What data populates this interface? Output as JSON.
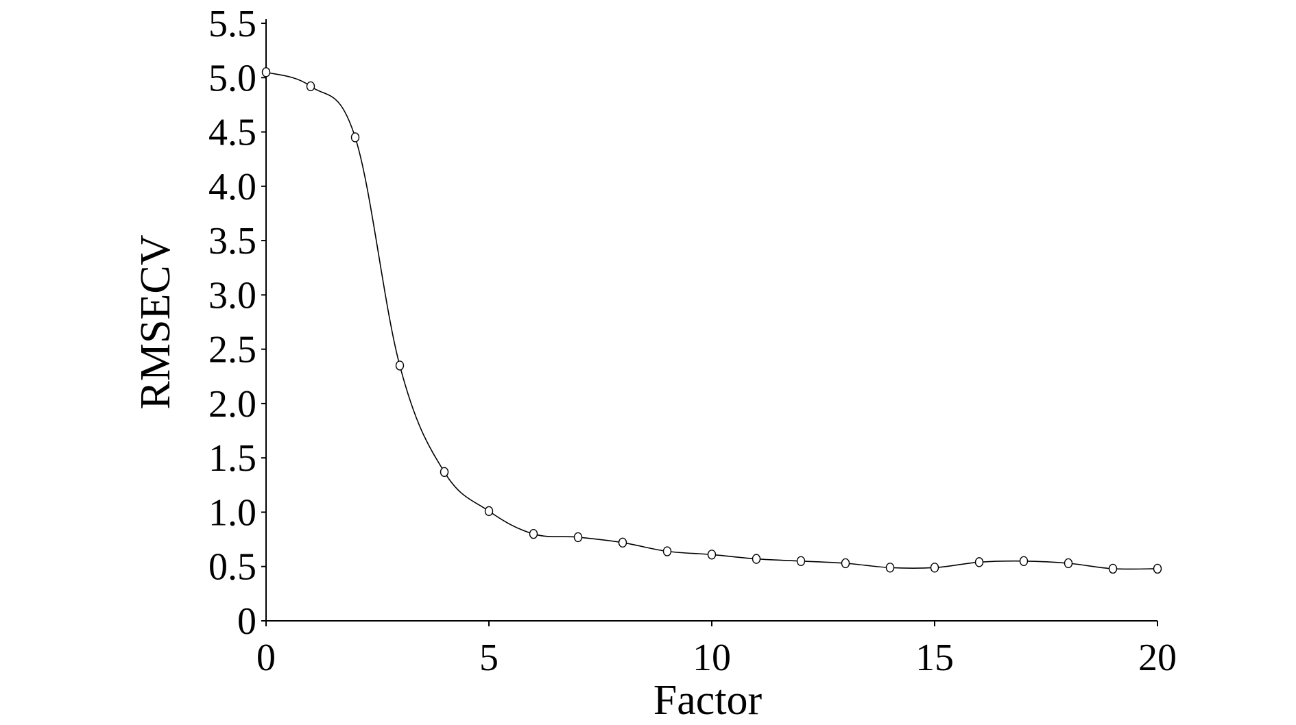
{
  "chart_data": {
    "type": "line",
    "xlabel": "Factor",
    "ylabel": "RMSECV",
    "xlim": [
      0,
      20
    ],
    "ylim": [
      0,
      5.5
    ],
    "x_ticks": [
      "0",
      "5",
      "10",
      "15",
      "20"
    ],
    "y_ticks": [
      "0",
      "0.5",
      "1.0",
      "1.5",
      "2.0",
      "2.5",
      "3.0",
      "3.5",
      "4.0",
      "4.5",
      "5.0",
      "5.5"
    ],
    "grid": false,
    "legend": "none",
    "series": [
      {
        "x": [
          0,
          1,
          2,
          3,
          4,
          5,
          6,
          7,
          8,
          9,
          10,
          11,
          12,
          13,
          14,
          15,
          16,
          17,
          18,
          19,
          20
        ],
        "values": [
          5.05,
          4.92,
          4.45,
          2.35,
          1.37,
          1.01,
          0.8,
          0.77,
          0.72,
          0.64,
          0.61,
          0.57,
          0.55,
          0.53,
          0.49,
          0.49,
          0.54,
          0.55,
          0.53,
          0.48,
          0.48
        ]
      }
    ],
    "colors": {
      "line": "#000000",
      "marker": "#000000",
      "background": "#ffffff"
    }
  }
}
